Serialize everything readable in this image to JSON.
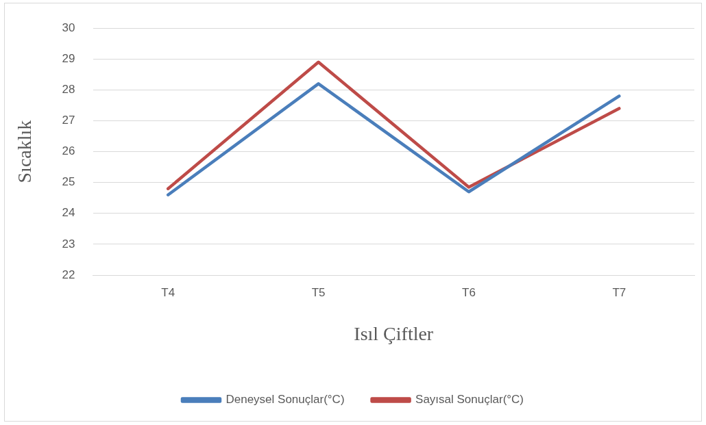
{
  "chart_data": {
    "type": "line",
    "xlabel": "Isıl Çiftler",
    "ylabel": "Sıcaklık",
    "categories": [
      "T4",
      "T5",
      "T6",
      "T7"
    ],
    "series": [
      {
        "name": "Deneysel Sonuçlar(°C)",
        "color": "#4a7ebb",
        "values": [
          24.6,
          28.2,
          24.7,
          27.8
        ]
      },
      {
        "name": "Sayısal Sonuçlar(°C)",
        "color": "#be4b48",
        "values": [
          24.8,
          28.9,
          24.85,
          27.4
        ]
      }
    ],
    "ylim": [
      22,
      30
    ],
    "yticks": [
      22,
      23,
      24,
      25,
      26,
      27,
      28,
      29,
      30
    ],
    "grid": "y",
    "legend": "bottom",
    "marker": "none",
    "line_style": "solid"
  }
}
